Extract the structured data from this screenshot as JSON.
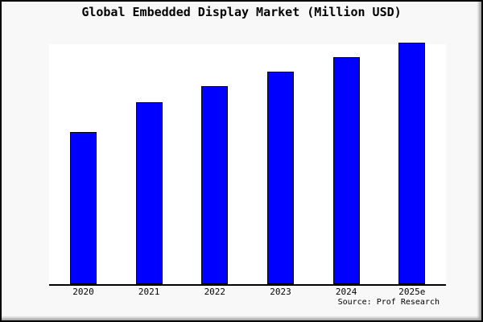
{
  "title": "Global Embedded Display Market (Million USD)",
  "source_note": "Source: Prof Research",
  "colors": {
    "bar_fill": "#0000ff",
    "bar_edge": "#000000",
    "canvas_background": "#f8f8f8",
    "plot_background": "#ffffff",
    "axis_line": "#000000",
    "frame_border": "#000000"
  },
  "chart_data": {
    "type": "bar",
    "title": "Global Embedded Display Market (Million USD)",
    "categories": [
      "2020",
      "2021",
      "2022",
      "2023",
      "2024",
      "2025e"
    ],
    "values": [
      63,
      75.3,
      81.9,
      87.9,
      93.9,
      100
    ],
    "units": "relative index estimated from bar heights (tallest bar 2025e = 100); y-axis has no ticks, labels or gridlines in the chart",
    "xlabel": "",
    "ylabel": "",
    "ylim": [
      0,
      100
    ],
    "grid": false,
    "legend": false,
    "bar_color": "#0000ff",
    "bar_edge_color": "#000000",
    "source_note": "Source: Prof Research"
  }
}
